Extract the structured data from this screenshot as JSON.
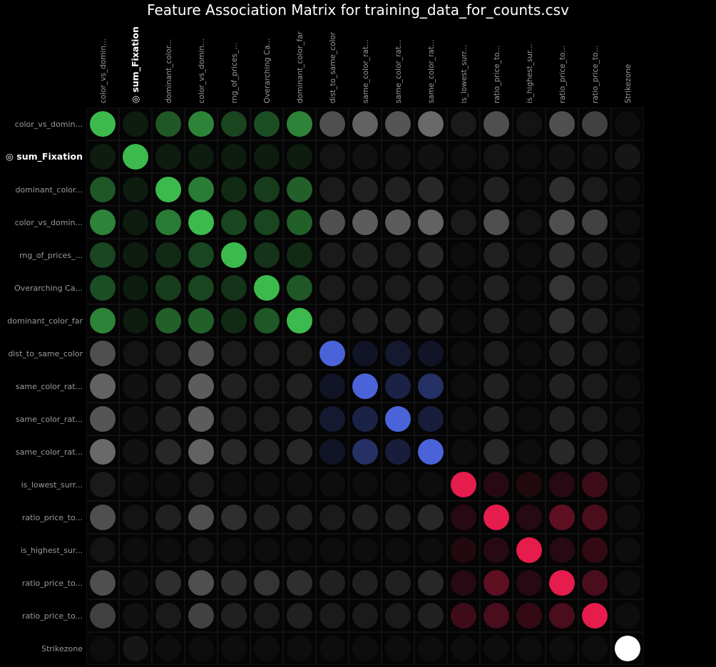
{
  "chart_data": {
    "type": "heatmap",
    "title": "Feature Association Matrix for training_data_for_counts.csv",
    "target_marker": "◎",
    "target_index": 1,
    "features": [
      "color_vs_domin...",
      "sum_Fixation",
      "dominant_color...",
      "color_vs_domin...",
      "rng_of_prices_...",
      "Overarching Ca...",
      "dominant_color_far",
      "dist_to_same_color",
      "same_color_rat...",
      "same_color_rat...",
      "same_color_rat...",
      "is_lowest_surr...",
      "ratio_price_to...",
      "is_highest_sur...",
      "ratio_price_to...",
      "ratio_price_to...",
      "Strikezone"
    ],
    "groups": [
      "green",
      "green",
      "green",
      "green",
      "green",
      "green",
      "green",
      "blue",
      "blue",
      "blue",
      "blue",
      "red",
      "red",
      "red",
      "red",
      "red",
      "white"
    ],
    "group_colors": {
      "green": "#3dba4e",
      "blue": "#4a63d8",
      "red": "#e51c4c",
      "white": "#ffffff",
      "neutral": "#8a8a8a"
    },
    "values": [
      [
        1.0,
        0.1,
        0.45,
        0.7,
        0.35,
        0.4,
        0.7,
        0.55,
        0.7,
        0.6,
        0.75,
        0.15,
        0.55,
        0.1,
        0.55,
        0.45,
        0.05
      ],
      [
        0.1,
        1.0,
        0.05,
        0.1,
        0.05,
        0.05,
        0.05,
        0.1,
        0.08,
        0.08,
        0.08,
        0.02,
        0.1,
        0.02,
        0.08,
        0.08,
        0.12
      ],
      [
        0.45,
        0.05,
        1.0,
        0.65,
        0.2,
        0.3,
        0.5,
        0.15,
        0.2,
        0.2,
        0.25,
        0.05,
        0.2,
        0.05,
        0.3,
        0.15,
        0.03
      ],
      [
        0.7,
        0.1,
        0.65,
        1.0,
        0.35,
        0.35,
        0.5,
        0.55,
        0.65,
        0.65,
        0.7,
        0.15,
        0.55,
        0.1,
        0.55,
        0.45,
        0.05
      ],
      [
        0.35,
        0.05,
        0.2,
        0.35,
        1.0,
        0.25,
        0.2,
        0.15,
        0.2,
        0.15,
        0.25,
        0.05,
        0.2,
        0.05,
        0.3,
        0.2,
        0.03
      ],
      [
        0.4,
        0.05,
        0.3,
        0.35,
        0.25,
        1.0,
        0.45,
        0.15,
        0.15,
        0.15,
        0.2,
        0.05,
        0.2,
        0.05,
        0.35,
        0.15,
        0.02
      ],
      [
        0.7,
        0.05,
        0.5,
        0.5,
        0.2,
        0.45,
        1.0,
        0.15,
        0.2,
        0.2,
        0.25,
        0.05,
        0.2,
        0.05,
        0.3,
        0.2,
        0.03
      ],
      [
        0.55,
        0.1,
        0.15,
        0.55,
        0.15,
        0.15,
        0.15,
        1.0,
        0.15,
        0.2,
        0.15,
        0.05,
        0.15,
        0.03,
        0.2,
        0.15,
        0.02
      ],
      [
        0.7,
        0.08,
        0.2,
        0.65,
        0.2,
        0.15,
        0.2,
        0.15,
        1.0,
        0.3,
        0.45,
        0.03,
        0.2,
        0.03,
        0.2,
        0.15,
        0.02
      ],
      [
        0.6,
        0.08,
        0.2,
        0.65,
        0.15,
        0.15,
        0.2,
        0.2,
        0.3,
        1.0,
        0.25,
        0.02,
        0.2,
        0.02,
        0.2,
        0.15,
        0.02
      ],
      [
        0.75,
        0.08,
        0.25,
        0.7,
        0.25,
        0.2,
        0.25,
        0.15,
        0.45,
        0.25,
        1.0,
        0.05,
        0.25,
        0.05,
        0.25,
        0.2,
        0.02
      ],
      [
        0.15,
        0.02,
        0.05,
        0.15,
        0.05,
        0.05,
        0.05,
        0.05,
        0.03,
        0.02,
        0.05,
        1.0,
        0.15,
        0.05,
        0.15,
        0.25,
        0.03
      ],
      [
        0.55,
        0.1,
        0.2,
        0.55,
        0.3,
        0.2,
        0.2,
        0.15,
        0.2,
        0.2,
        0.25,
        0.15,
        1.0,
        0.15,
        0.4,
        0.3,
        0.05
      ],
      [
        0.1,
        0.02,
        0.05,
        0.1,
        0.05,
        0.05,
        0.05,
        0.03,
        0.03,
        0.02,
        0.05,
        0.05,
        0.15,
        1.0,
        0.15,
        0.2,
        0.02
      ],
      [
        0.55,
        0.08,
        0.3,
        0.55,
        0.3,
        0.35,
        0.3,
        0.2,
        0.2,
        0.2,
        0.25,
        0.15,
        0.4,
        0.15,
        1.0,
        0.3,
        0.05
      ],
      [
        0.45,
        0.08,
        0.15,
        0.45,
        0.2,
        0.15,
        0.2,
        0.15,
        0.15,
        0.15,
        0.2,
        0.25,
        0.3,
        0.2,
        0.3,
        1.0,
        0.03
      ],
      [
        0.05,
        0.12,
        0.03,
        0.05,
        0.03,
        0.02,
        0.03,
        0.02,
        0.02,
        0.02,
        0.02,
        0.03,
        0.05,
        0.02,
        0.05,
        0.03,
        1.0
      ]
    ]
  }
}
